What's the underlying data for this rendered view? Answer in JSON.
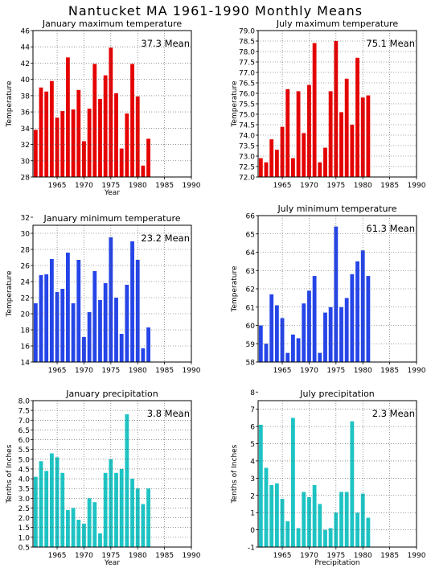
{
  "title": "Nantucket MA   1961-1990 Monthly Means",
  "chart_data": [
    {
      "type": "bar",
      "title": "January maximum temperature",
      "ylabel": "Temperature",
      "xlabel": "Year",
      "mean_label": "37.3 Mean",
      "color": "#e60000",
      "ylim": [
        28,
        46
      ],
      "ytick_step": 2,
      "ytick_decimals": 0,
      "xlim": [
        1960.5,
        1990
      ],
      "xticks": [
        1965,
        1970,
        1975,
        1980,
        1985,
        1990
      ],
      "x": [
        1961,
        1962,
        1963,
        1964,
        1965,
        1966,
        1967,
        1968,
        1969,
        1970,
        1971,
        1972,
        1973,
        1974,
        1975,
        1976,
        1977,
        1978,
        1979,
        1980,
        1981,
        1982
      ],
      "values": [
        33.8,
        39.0,
        38.5,
        39.8,
        35.3,
        36.1,
        42.7,
        36.3,
        38.7,
        32.4,
        36.4,
        41.9,
        37.6,
        40.5,
        43.9,
        38.3,
        31.5,
        35.8,
        41.9,
        37.9,
        29.4,
        32.7
      ],
      "grid": true
    },
    {
      "type": "bar",
      "title": "July maximum temperature",
      "ylabel": "Temperature",
      "xlabel": "",
      "mean_label": "75.1 Mean",
      "color": "#e60000",
      "ylim": [
        72,
        79
      ],
      "ytick_step": 0.5,
      "ytick_decimals": 1,
      "xlim": [
        1960.5,
        1990
      ],
      "xticks": [
        1965,
        1970,
        1975,
        1980,
        1985,
        1990
      ],
      "x": [
        1961,
        1962,
        1963,
        1964,
        1965,
        1966,
        1967,
        1968,
        1969,
        1970,
        1971,
        1972,
        1973,
        1974,
        1975,
        1976,
        1977,
        1978,
        1979,
        1980,
        1981
      ],
      "values": [
        72.9,
        72.7,
        73.8,
        73.3,
        74.4,
        76.2,
        72.9,
        76.1,
        74.1,
        76.4,
        78.4,
        72.7,
        73.4,
        76.1,
        78.5,
        75.1,
        76.7,
        74.5,
        77.7,
        75.8,
        75.9
      ],
      "grid": true
    },
    {
      "type": "bar",
      "title": "January minimum temperature",
      "ylabel": "Temperature",
      "xlabel": "",
      "mean_label": "23.2 Mean",
      "color": "#2545e8",
      "ylim": [
        14,
        31
      ],
      "ytick_step": 2,
      "ytick_decimals": 0,
      "xlim": [
        1960.5,
        1990
      ],
      "xticks": [
        1965,
        1970,
        1975,
        1980,
        1985,
        1990
      ],
      "x": [
        1961,
        1962,
        1963,
        1964,
        1965,
        1966,
        1967,
        1968,
        1969,
        1970,
        1971,
        1972,
        1973,
        1974,
        1975,
        1976,
        1977,
        1978,
        1979,
        1980,
        1981,
        1982
      ],
      "values": [
        21.3,
        24.8,
        24.9,
        26.8,
        22.7,
        23.1,
        27.6,
        21.3,
        26.7,
        17.1,
        20.2,
        25.3,
        21.7,
        23.8,
        29.5,
        22.0,
        17.5,
        23.6,
        29.0,
        26.7,
        15.7,
        18.3
      ],
      "grid": true
    },
    {
      "type": "bar",
      "title": "July minimum temperature",
      "ylabel": "Temperature",
      "xlabel": "",
      "mean_label": "61.3 Mean",
      "color": "#2545e8",
      "ylim": [
        58,
        66
      ],
      "ytick_step": 1,
      "ytick_decimals": 0,
      "xlim": [
        1960.5,
        1990
      ],
      "xticks": [
        1965,
        1970,
        1975,
        1980,
        1985,
        1990
      ],
      "x": [
        1961,
        1962,
        1963,
        1964,
        1965,
        1966,
        1967,
        1968,
        1969,
        1970,
        1971,
        1972,
        1973,
        1974,
        1975,
        1976,
        1977,
        1978,
        1979,
        1980,
        1981
      ],
      "values": [
        60.0,
        59.0,
        61.7,
        61.1,
        60.4,
        58.5,
        59.5,
        59.3,
        61.2,
        61.9,
        62.7,
        58.5,
        60.7,
        61.0,
        65.4,
        61.0,
        61.5,
        62.8,
        63.5,
        64.1,
        62.7
      ],
      "grid": true
    },
    {
      "type": "bar",
      "title": "January precipitation",
      "ylabel": "Tenths of Inches",
      "xlabel": "Year",
      "mean_label": "3.8 Mean",
      "color": "#1ec4c4",
      "ylim": [
        0.5,
        8
      ],
      "ytick_step": 0.5,
      "ytick_decimals": 1,
      "xlim": [
        1960.5,
        1990
      ],
      "xticks": [
        1965,
        1970,
        1975,
        1980,
        1985,
        1990
      ],
      "x": [
        1961,
        1962,
        1963,
        1964,
        1965,
        1966,
        1967,
        1968,
        1969,
        1970,
        1971,
        1972,
        1973,
        1974,
        1975,
        1976,
        1977,
        1978,
        1979,
        1980,
        1981,
        1982
      ],
      "values": [
        4.1,
        4.9,
        4.4,
        5.3,
        5.1,
        4.3,
        2.4,
        2.5,
        1.9,
        1.7,
        3.0,
        2.8,
        1.2,
        4.3,
        5.0,
        4.3,
        4.5,
        7.3,
        4.0,
        3.5,
        2.7,
        3.5
      ],
      "grid": true
    },
    {
      "type": "bar",
      "title": "July precipitation",
      "ylabel": "Tenths of Inches",
      "xlabel": "Precipitation",
      "mean_label": "2.3 Mean",
      "color": "#1ec4c4",
      "ylim": [
        -1,
        7.5
      ],
      "ytick_step": 1,
      "ytick_decimals": 0,
      "xlim": [
        1960.5,
        1990
      ],
      "xticks": [
        1965,
        1970,
        1975,
        1980,
        1985,
        1990
      ],
      "x": [
        1961,
        1962,
        1963,
        1964,
        1965,
        1966,
        1967,
        1968,
        1969,
        1970,
        1971,
        1972,
        1973,
        1974,
        1975,
        1976,
        1977,
        1978,
        1979,
        1980,
        1981
      ],
      "values": [
        6.1,
        3.6,
        2.6,
        2.7,
        1.8,
        0.5,
        6.5,
        0.1,
        2.2,
        1.9,
        2.6,
        1.5,
        0.0,
        0.1,
        1.0,
        2.2,
        2.2,
        6.3,
        1.0,
        2.1,
        0.7
      ],
      "grid": true
    }
  ]
}
